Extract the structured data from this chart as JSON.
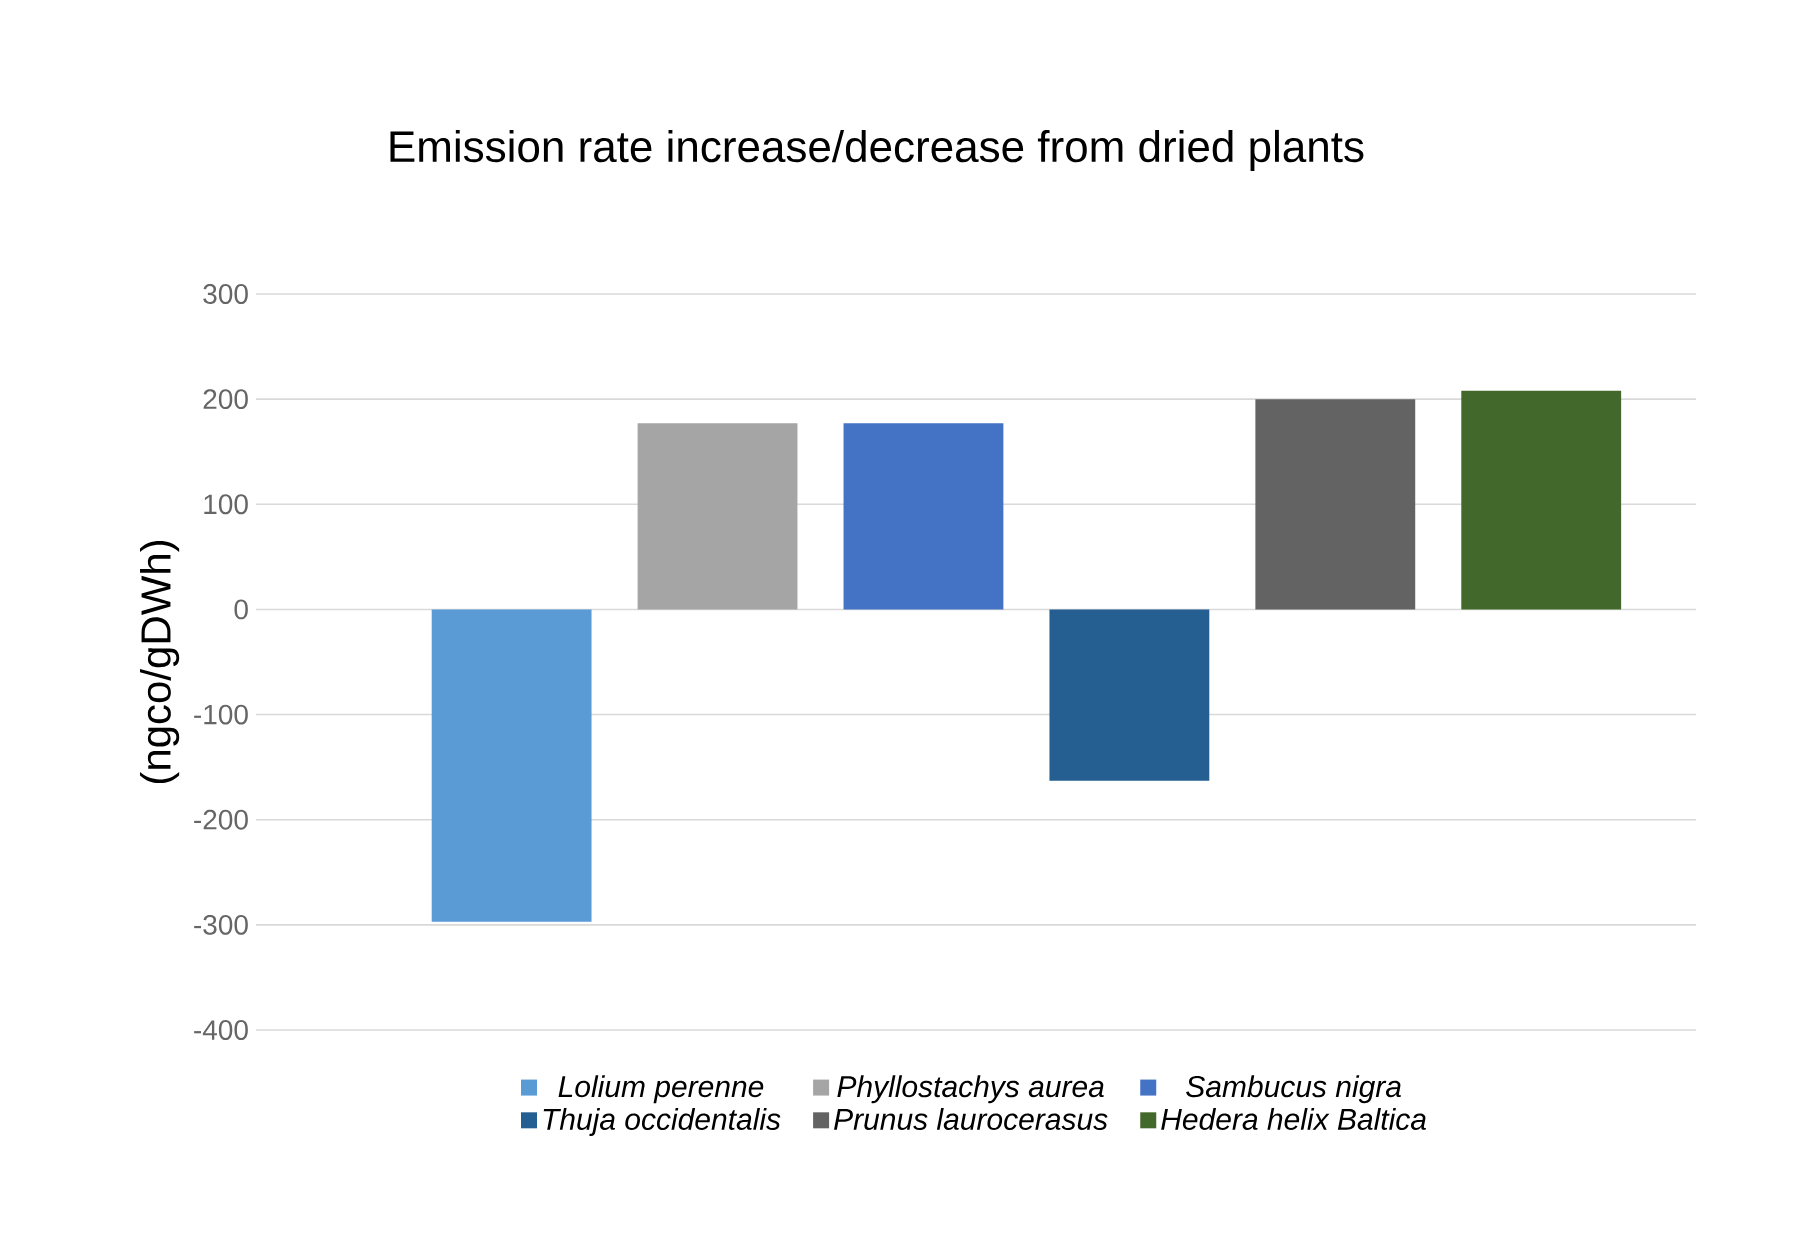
{
  "chart_data": {
    "type": "bar",
    "title": "Emission rate increase/decrease from dried plants",
    "ylabel": "(ngco/gDWh)",
    "categories": [
      null
    ],
    "series": [
      {
        "name": "Lolium perenne",
        "color": "#5b9bd5",
        "values": [
          -297
        ]
      },
      {
        "name": "Phyllostachys aurea",
        "color": "#a5a5a5",
        "values": [
          177
        ]
      },
      {
        "name": "Sambucus nigra",
        "color": "#4472c4",
        "values": [
          177
        ]
      },
      {
        "name": "Thuja occidentalis",
        "color": "#255e91",
        "values": [
          -163
        ]
      },
      {
        "name": "Prunus laurocerasus",
        "color": "#636363",
        "values": [
          200
        ]
      },
      {
        "name": "Hedera helix Baltica",
        "color": "#43682b",
        "values": [
          208
        ]
      }
    ],
    "ylim": [
      -400,
      300
    ],
    "yticks": [
      -400,
      -300,
      -200,
      -100,
      0,
      100,
      200,
      300
    ],
    "grid": "y",
    "legend": "bottom"
  }
}
